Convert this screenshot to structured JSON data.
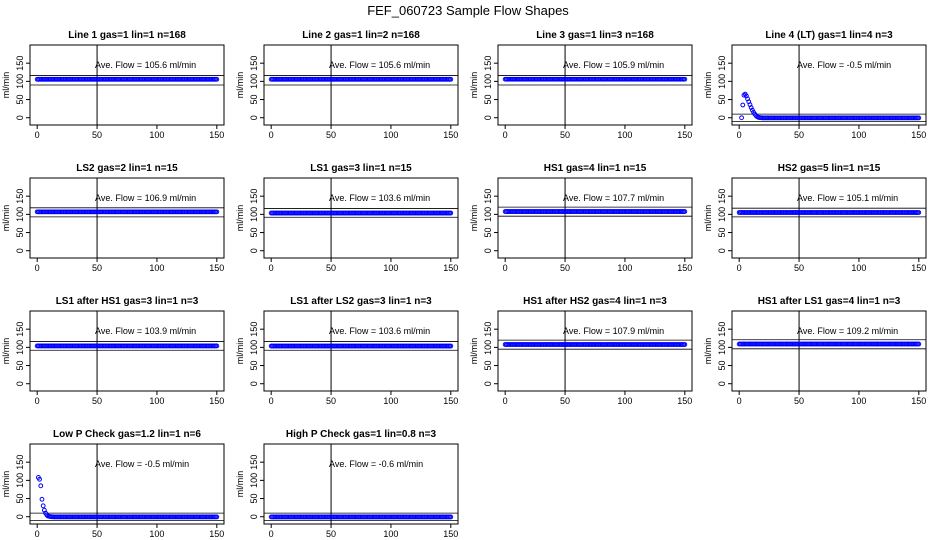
{
  "figure": {
    "title": "FEF_060723  Sample Flow Shapes"
  },
  "colors": {
    "points": "#0000ff",
    "axes": "#000000",
    "background": "#ffffff"
  },
  "chart_data": [
    {
      "type": "scatter",
      "title": "Line 1 gas=1 lin=1 n=168",
      "ylabel": "ml/min",
      "xlim": [
        0,
        150
      ],
      "ylim": [
        -20,
        200
      ],
      "xticks": [
        0,
        50,
        100,
        150
      ],
      "yticks": [
        0,
        50,
        100,
        150
      ],
      "vline": 50,
      "hlines": [
        90,
        116
      ],
      "annotation": "Ave. Flow =  105.6  ml/min",
      "shape": "flat",
      "x": [
        0,
        150
      ],
      "y": [
        105.6,
        105.6
      ]
    },
    {
      "type": "scatter",
      "title": "Line 2 gas=1 lin=2 n=168",
      "ylabel": "ml/min",
      "xlim": [
        0,
        150
      ],
      "ylim": [
        -20,
        200
      ],
      "xticks": [
        0,
        50,
        100,
        150
      ],
      "yticks": [
        0,
        50,
        100,
        150
      ],
      "vline": 50,
      "hlines": [
        90,
        116
      ],
      "annotation": "Ave. Flow =  105.6  ml/min",
      "shape": "flat",
      "x": [
        0,
        150
      ],
      "y": [
        105.6,
        105.6
      ]
    },
    {
      "type": "scatter",
      "title": "Line 3 gas=1 lin=3 n=168",
      "ylabel": "ml/min",
      "xlim": [
        0,
        150
      ],
      "ylim": [
        -20,
        200
      ],
      "xticks": [
        0,
        50,
        100,
        150
      ],
      "yticks": [
        0,
        50,
        100,
        150
      ],
      "vline": 50,
      "hlines": [
        90,
        116
      ],
      "annotation": "Ave. Flow =  105.9  ml/min",
      "shape": "flat",
      "x": [
        0,
        150
      ],
      "y": [
        105.9,
        105.9
      ]
    },
    {
      "type": "scatter",
      "title": "Line 4 (LT) gas=1 lin=4 n=3",
      "ylabel": "ml/min",
      "xlim": [
        0,
        150
      ],
      "ylim": [
        -20,
        200
      ],
      "xticks": [
        0,
        50,
        100,
        150
      ],
      "yticks": [
        0,
        50,
        100,
        150
      ],
      "vline": 50,
      "hlines": [
        -10,
        10
      ],
      "annotation": "Ave. Flow =  -0.5  ml/min",
      "shape": "spike",
      "x": [
        2,
        3,
        4,
        5,
        6,
        7,
        8,
        9,
        10,
        11,
        12,
        13,
        14,
        15,
        16,
        18,
        20,
        22,
        150
      ],
      "y": [
        0,
        35,
        62,
        65,
        60,
        52,
        44,
        36,
        28,
        21,
        15,
        10,
        6,
        3,
        1,
        0,
        -0.5,
        -0.5,
        -0.5
      ]
    },
    {
      "type": "scatter",
      "title": "LS2 gas=2 lin=1 n=15",
      "ylabel": "ml/min",
      "xlim": [
        0,
        150
      ],
      "ylim": [
        -20,
        200
      ],
      "xticks": [
        0,
        50,
        100,
        150
      ],
      "yticks": [
        0,
        50,
        100,
        150
      ],
      "vline": 50,
      "hlines": [
        93,
        118
      ],
      "annotation": "Ave. Flow =  106.9  ml/min",
      "shape": "flat",
      "x": [
        0,
        150
      ],
      "y": [
        106.9,
        106.9
      ]
    },
    {
      "type": "scatter",
      "title": "LS1 gas=3 lin=1 n=15",
      "ylabel": "ml/min",
      "xlim": [
        0,
        150
      ],
      "ylim": [
        -20,
        200
      ],
      "xticks": [
        0,
        50,
        100,
        150
      ],
      "yticks": [
        0,
        50,
        100,
        150
      ],
      "vline": 50,
      "hlines": [
        92,
        116
      ],
      "annotation": "Ave. Flow =  103.6  ml/min",
      "shape": "flat",
      "x": [
        0,
        150
      ],
      "y": [
        103.6,
        103.6
      ]
    },
    {
      "type": "scatter",
      "title": "HS1 gas=4 lin=1 n=15",
      "ylabel": "ml/min",
      "xlim": [
        0,
        150
      ],
      "ylim": [
        -20,
        200
      ],
      "xticks": [
        0,
        50,
        100,
        150
      ],
      "yticks": [
        0,
        50,
        100,
        150
      ],
      "vline": 50,
      "hlines": [
        95,
        120
      ],
      "annotation": "Ave. Flow =  107.7  ml/min",
      "shape": "flat",
      "x": [
        0,
        150
      ],
      "y": [
        107.7,
        107.7
      ]
    },
    {
      "type": "scatter",
      "title": "HS2 gas=5 lin=1 n=15",
      "ylabel": "ml/min",
      "xlim": [
        0,
        150
      ],
      "ylim": [
        -20,
        200
      ],
      "xticks": [
        0,
        50,
        100,
        150
      ],
      "yticks": [
        0,
        50,
        100,
        150
      ],
      "vline": 50,
      "hlines": [
        93,
        117
      ],
      "annotation": "Ave. Flow =  105.1  ml/min",
      "shape": "flat",
      "x": [
        0,
        150
      ],
      "y": [
        105.1,
        105.1
      ]
    },
    {
      "type": "scatter",
      "title": "LS1 after HS1 gas=3 lin=1 n=3",
      "ylabel": "ml/min",
      "xlim": [
        0,
        150
      ],
      "ylim": [
        -20,
        200
      ],
      "xticks": [
        0,
        50,
        100,
        150
      ],
      "yticks": [
        0,
        50,
        100,
        150
      ],
      "vline": 50,
      "hlines": [
        92,
        116
      ],
      "annotation": "Ave. Flow =  103.9  ml/min",
      "shape": "flat",
      "x": [
        0,
        150
      ],
      "y": [
        103.9,
        103.9
      ]
    },
    {
      "type": "scatter",
      "title": "LS1 after LS2 gas=3 lin=1 n=3",
      "ylabel": "ml/min",
      "xlim": [
        0,
        150
      ],
      "ylim": [
        -20,
        200
      ],
      "xticks": [
        0,
        50,
        100,
        150
      ],
      "yticks": [
        0,
        50,
        100,
        150
      ],
      "vline": 50,
      "hlines": [
        92,
        116
      ],
      "annotation": "Ave. Flow =  103.6  ml/min",
      "shape": "flat",
      "x": [
        0,
        150
      ],
      "y": [
        103.6,
        103.6
      ]
    },
    {
      "type": "scatter",
      "title": "HS1 after HS2 gas=4 lin=1 n=3",
      "ylabel": "ml/min",
      "xlim": [
        0,
        150
      ],
      "ylim": [
        -20,
        200
      ],
      "xticks": [
        0,
        50,
        100,
        150
      ],
      "yticks": [
        0,
        50,
        100,
        150
      ],
      "vline": 50,
      "hlines": [
        95,
        120
      ],
      "annotation": "Ave. Flow =  107.9  ml/min",
      "shape": "flat",
      "x": [
        0,
        150
      ],
      "y": [
        107.9,
        107.9
      ]
    },
    {
      "type": "scatter",
      "title": "HS1 after LS1 gas=4 lin=1 n=3",
      "ylabel": "ml/min",
      "xlim": [
        0,
        150
      ],
      "ylim": [
        -20,
        200
      ],
      "xticks": [
        0,
        50,
        100,
        150
      ],
      "yticks": [
        0,
        50,
        100,
        150
      ],
      "vline": 50,
      "hlines": [
        96,
        121
      ],
      "annotation": "Ave. Flow =  109.2  ml/min",
      "shape": "flat",
      "x": [
        0,
        150
      ],
      "y": [
        109.2,
        109.2
      ]
    },
    {
      "type": "scatter",
      "title": "Low P Check gas=1.2 lin=1 n=6",
      "ylabel": "ml/min",
      "xlim": [
        0,
        150
      ],
      "ylim": [
        -20,
        200
      ],
      "xticks": [
        0,
        50,
        100,
        150
      ],
      "yticks": [
        0,
        50,
        100,
        150
      ],
      "vline": 50,
      "hlines": [
        -10,
        10
      ],
      "annotation": "Ave. Flow =  -0.5  ml/min",
      "shape": "decay",
      "x": [
        1,
        2,
        3,
        4,
        5,
        6,
        7,
        8,
        9,
        10,
        12,
        14,
        16,
        20,
        150
      ],
      "y": [
        108,
        103,
        85,
        48,
        30,
        18,
        10,
        5,
        2,
        1,
        0,
        -0.5,
        -0.5,
        -0.5,
        -0.5
      ]
    },
    {
      "type": "scatter",
      "title": "High P Check gas=1 lin=0.8 n=3",
      "ylabel": "ml/min",
      "xlim": [
        0,
        150
      ],
      "ylim": [
        -20,
        200
      ],
      "xticks": [
        0,
        50,
        100,
        150
      ],
      "yticks": [
        0,
        50,
        100,
        150
      ],
      "vline": 50,
      "hlines": [
        -10,
        10
      ],
      "annotation": "Ave. Flow =  -0.6  ml/min",
      "shape": "flat",
      "x": [
        0,
        150
      ],
      "y": [
        -0.6,
        -0.6
      ]
    }
  ]
}
